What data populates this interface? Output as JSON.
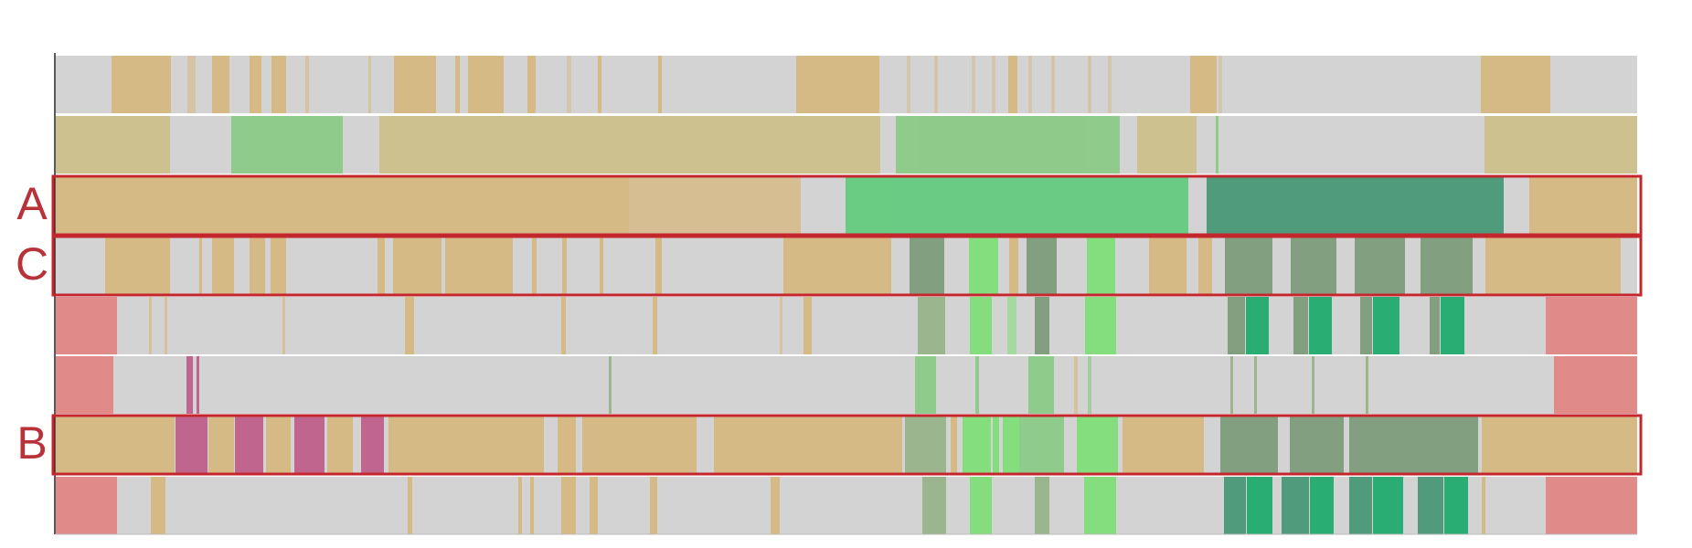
{
  "figure": {
    "row_labels": [
      "A",
      "C",
      "B"
    ],
    "colors": {
      "background": "#d3d3d3",
      "tan": "#d6ba86",
      "khaki": "#cdc28f",
      "green": "#8fcb8a",
      "bright_green": "#6acc84",
      "teal": "#4f9b7b",
      "dark_sage": "#82a07f",
      "sage": "#9bb68e",
      "lime": "#85de7e",
      "emerald": "#2aad72",
      "red": "#e08a8a",
      "magenta": "#c0668e",
      "highlight": "#c4262e"
    }
  }
}
